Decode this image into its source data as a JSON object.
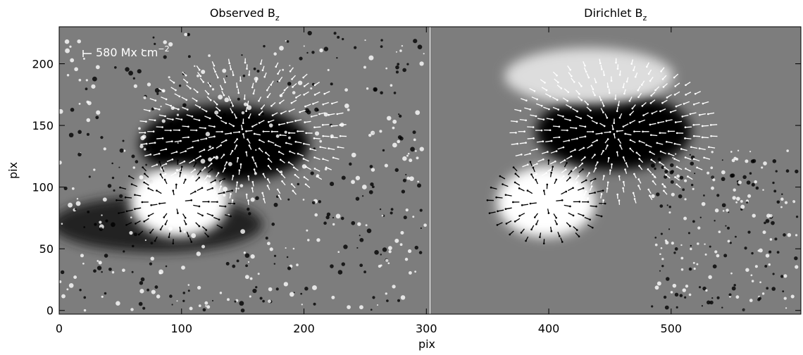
{
  "chart_data": {
    "type": "image",
    "panels": [
      {
        "title": "Observed  B",
        "title_subscript": "z",
        "xlim": [
          0,
          303
        ]
      },
      {
        "title": "Dirichlet   B",
        "title_subscript": "z",
        "xlim": [
          303,
          606
        ]
      }
    ],
    "annotation": {
      "text": "580 Mx cm",
      "superscript": "−2"
    },
    "xlabel": "pix",
    "ylabel": "pix",
    "xlim": [
      0,
      606
    ],
    "ylim": [
      -3,
      230
    ],
    "xticks": [
      0,
      100,
      200,
      300,
      400,
      500
    ],
    "yticks": [
      0,
      50,
      100,
      150,
      200
    ]
  }
}
